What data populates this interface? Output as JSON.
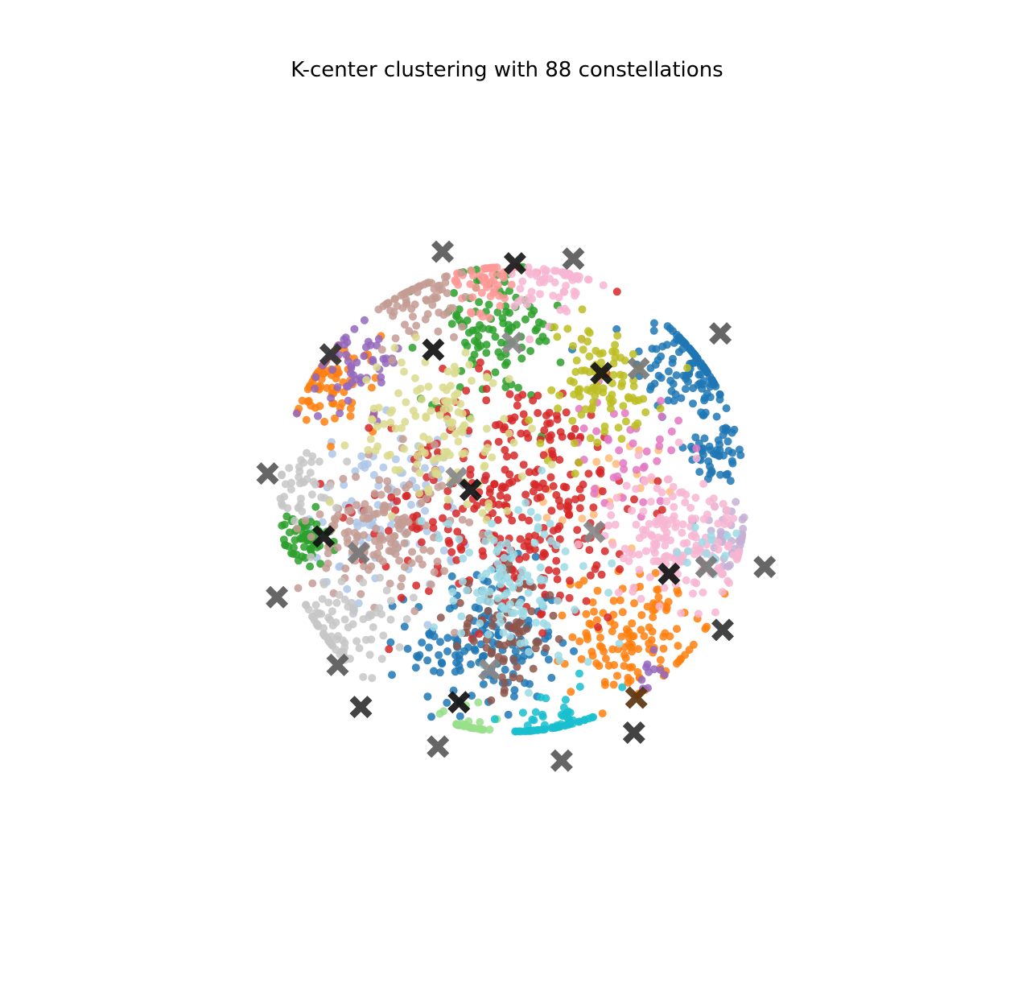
{
  "chart_data": {
    "type": "scatter",
    "title": "K-center clustering with 88 constellations",
    "xlabel": "",
    "ylabel": "",
    "axes_visible": false,
    "grid": false,
    "xlim": [
      -1.5,
      1.5
    ],
    "ylim": [
      -1.5,
      1.5
    ],
    "point_colors": [
      "#1f77b4",
      "#aec7e8",
      "#ff7f0e",
      "#ffbb78",
      "#2ca02c",
      "#98df8a",
      "#d62728",
      "#ff9896",
      "#9467bd",
      "#c5b0d5",
      "#8c564b",
      "#c49c94",
      "#e377c2",
      "#f7b6d2",
      "#7f7f7f",
      "#c7c7c7",
      "#bcbd22",
      "#dbdb8d",
      "#17becf",
      "#9edae5"
    ],
    "center_marker": "x-filled",
    "clusters": [
      {
        "color": "#1f77b4",
        "cx": 0.78,
        "cy": 0.58,
        "spread": 0.13,
        "n": 130
      },
      {
        "color": "#1f77b4",
        "cx": 0.88,
        "cy": 0.2,
        "spread": 0.07,
        "n": 50
      },
      {
        "color": "#1f77b4",
        "cx": -0.12,
        "cy": -0.62,
        "spread": 0.16,
        "n": 150
      },
      {
        "color": "#aec7e8",
        "cx": -0.52,
        "cy": -0.05,
        "spread": 0.17,
        "n": 110
      },
      {
        "color": "#ff7f0e",
        "cx": -0.78,
        "cy": 0.5,
        "spread": 0.1,
        "n": 80
      },
      {
        "color": "#ff7f0e",
        "cx": 0.52,
        "cy": -0.58,
        "spread": 0.13,
        "n": 130
      },
      {
        "color": "#ffbb78",
        "cx": 0.38,
        "cy": 0.02,
        "spread": 0.12,
        "n": 25
      },
      {
        "color": "#2ca02c",
        "cx": -0.08,
        "cy": 0.72,
        "spread": 0.15,
        "n": 110
      },
      {
        "color": "#2ca02c",
        "cx": -0.9,
        "cy": -0.18,
        "spread": 0.06,
        "n": 60
      },
      {
        "color": "#98df8a",
        "cx": -0.2,
        "cy": -0.98,
        "spread": 0.06,
        "n": 25
      },
      {
        "color": "#d62728",
        "cx": 0.02,
        "cy": 0.0,
        "spread": 0.27,
        "n": 320
      },
      {
        "color": "#ff9896",
        "cx": -0.12,
        "cy": 0.94,
        "spread": 0.07,
        "n": 55
      },
      {
        "color": "#9467bd",
        "cx": -0.66,
        "cy": 0.6,
        "spread": 0.1,
        "n": 60
      },
      {
        "color": "#9467bd",
        "cx": 0.6,
        "cy": -0.72,
        "spread": 0.05,
        "n": 10
      },
      {
        "color": "#c5b0d5",
        "cx": 0.94,
        "cy": -0.18,
        "spread": 0.07,
        "n": 45
      },
      {
        "color": "#8c564b",
        "cx": -0.04,
        "cy": -0.58,
        "spread": 0.12,
        "n": 70
      },
      {
        "color": "#c49c94",
        "cx": -0.56,
        "cy": -0.14,
        "spread": 0.15,
        "n": 140
      },
      {
        "color": "#c49c94",
        "cx": -0.4,
        "cy": 0.86,
        "spread": 0.1,
        "n": 70
      },
      {
        "color": "#e377c2",
        "cx": 0.48,
        "cy": 0.22,
        "spread": 0.12,
        "n": 40
      },
      {
        "color": "#f7b6d2",
        "cx": 0.7,
        "cy": -0.16,
        "spread": 0.14,
        "n": 170
      },
      {
        "color": "#f7b6d2",
        "cx": 0.18,
        "cy": 0.92,
        "spread": 0.09,
        "n": 60
      },
      {
        "color": "#c7c7c7",
        "cx": -0.74,
        "cy": -0.55,
        "spread": 0.11,
        "n": 90
      },
      {
        "color": "#c7c7c7",
        "cx": -0.88,
        "cy": 0.08,
        "spread": 0.07,
        "n": 40
      },
      {
        "color": "#bcbd22",
        "cx": 0.36,
        "cy": 0.48,
        "spread": 0.14,
        "n": 100
      },
      {
        "color": "#dbdb8d",
        "cx": -0.3,
        "cy": 0.3,
        "spread": 0.18,
        "n": 130
      },
      {
        "color": "#17becf",
        "cx": 0.18,
        "cy": -0.98,
        "spread": 0.08,
        "n": 70
      },
      {
        "color": "#9edae5",
        "cx": 0.0,
        "cy": -0.38,
        "spread": 0.18,
        "n": 110
      },
      {
        "color": "#9edae5",
        "cx": 0.86,
        "cy": -0.24,
        "spread": 0.05,
        "n": 15
      }
    ],
    "centers": [
      {
        "x": -0.3,
        "y": 1.06,
        "shade": "#595959"
      },
      {
        "x": 0.01,
        "y": 1.01,
        "shade": "#1a1a1a"
      },
      {
        "x": 0.26,
        "y": 1.03,
        "shade": "#595959"
      },
      {
        "x": 0.89,
        "y": 0.71,
        "shade": "#595959"
      },
      {
        "x": -0.78,
        "y": 0.62,
        "shade": "#333333"
      },
      {
        "x": -0.34,
        "y": 0.64,
        "shade": "#111111"
      },
      {
        "x": 0.0,
        "y": 0.67,
        "shade": "#888888"
      },
      {
        "x": 0.38,
        "y": 0.54,
        "shade": "#111111"
      },
      {
        "x": 0.54,
        "y": 0.56,
        "shade": "#777777"
      },
      {
        "x": -1.05,
        "y": 0.11,
        "shade": "#595959"
      },
      {
        "x": -0.24,
        "y": 0.09,
        "shade": "#888888"
      },
      {
        "x": -0.18,
        "y": 0.04,
        "shade": "#111111"
      },
      {
        "x": -0.81,
        "y": -0.16,
        "shade": "#111111"
      },
      {
        "x": -0.66,
        "y": -0.23,
        "shade": "#777777"
      },
      {
        "x": 0.35,
        "y": -0.14,
        "shade": "#888888"
      },
      {
        "x": 0.67,
        "y": -0.32,
        "shade": "#111111"
      },
      {
        "x": 0.83,
        "y": -0.29,
        "shade": "#777777"
      },
      {
        "x": 1.08,
        "y": -0.29,
        "shade": "#595959"
      },
      {
        "x": -1.01,
        "y": -0.42,
        "shade": "#595959"
      },
      {
        "x": 0.9,
        "y": -0.56,
        "shade": "#333333"
      },
      {
        "x": -0.75,
        "y": -0.71,
        "shade": "#595959"
      },
      {
        "x": -0.1,
        "y": -0.73,
        "shade": "#888888"
      },
      {
        "x": -0.65,
        "y": -0.89,
        "shade": "#333333"
      },
      {
        "x": -0.23,
        "y": -0.87,
        "shade": "#111111"
      },
      {
        "x": 0.53,
        "y": -0.85,
        "shade": "#5a3410"
      },
      {
        "x": 0.52,
        "y": -1.0,
        "shade": "#333333"
      },
      {
        "x": -0.32,
        "y": -1.06,
        "shade": "#595959"
      },
      {
        "x": 0.21,
        "y": -1.12,
        "shade": "#595959"
      }
    ]
  }
}
